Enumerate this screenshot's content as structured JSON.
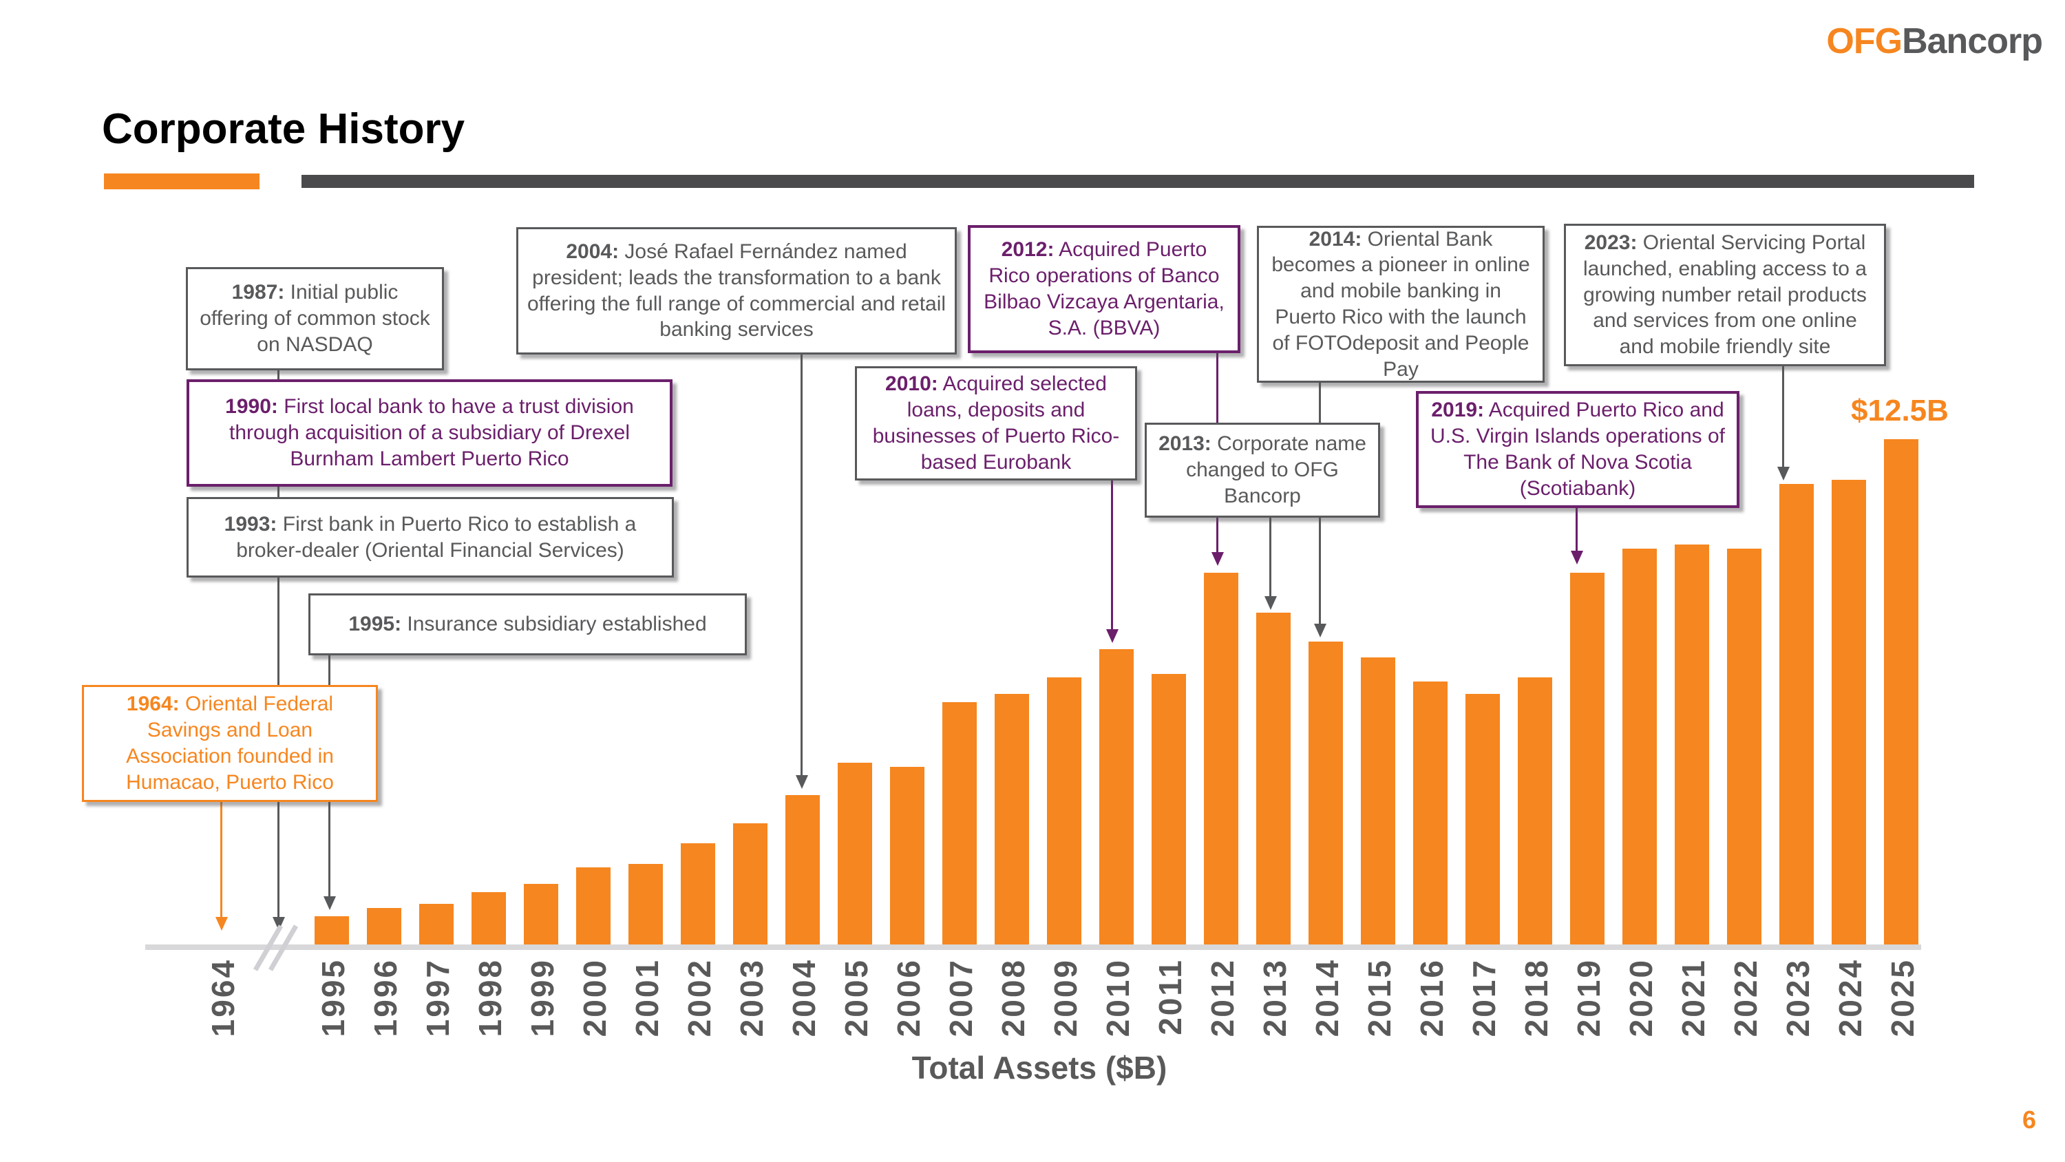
{
  "logo": {
    "ofg": "OFG",
    "bancorp": "Bancorp"
  },
  "title": "Corporate History",
  "page_number": "6",
  "colors": {
    "accent_orange": "#F6861F",
    "accent_purple": "#6B1F6B",
    "text_gray": "#58595B",
    "axis_gray": "#D8D8DA"
  },
  "events": {
    "e1964": {
      "year": "1964:",
      "text": "Oriental Federal Savings and Loan Association founded in Humacao, Puerto Rico"
    },
    "e1987": {
      "year": "1987:",
      "text": "Initial public offering of common stock on NASDAQ"
    },
    "e1990": {
      "year": "1990:",
      "text": "First local bank to have a trust division through acquisition of a subsidiary of Drexel Burnham Lambert Puerto Rico"
    },
    "e1993": {
      "year": "1993:",
      "text": "First bank in Puerto Rico to establish a broker-dealer (Oriental Financial Services)"
    },
    "e1995": {
      "year": "1995:",
      "text": "Insurance subsidiary established"
    },
    "e2004": {
      "year": "2004:",
      "text": "José Rafael Fernández named president; leads the transformation to a bank offering the full range of commercial and retail banking services"
    },
    "e2010": {
      "year": "2010:",
      "text": "Acquired selected loans, deposits and businesses of Puerto Rico-based Eurobank"
    },
    "e2012": {
      "year": "2012:",
      "text": "Acquired Puerto Rico operations of Banco Bilbao Vizcaya Argentaria, S.A. (BBVA)"
    },
    "e2013": {
      "year": "2013:",
      "text": "Corporate name changed to OFG Bancorp"
    },
    "e2014": {
      "year": "2014:",
      "text": "Oriental Bank becomes a pioneer in online and mobile banking in Puerto Rico with the launch of FOTOdeposit and People Pay"
    },
    "e2019": {
      "year": "2019:",
      "text": "Acquired Puerto Rico and U.S. Virgin Islands operations of The Bank of Nova Scotia (Scotiabank)"
    },
    "e2023": {
      "year": "2023:",
      "text": "Oriental Servicing Portal launched, enabling access to a growing number retail products and services from one online and mobile friendly site"
    }
  },
  "chart_data": {
    "type": "bar",
    "title": "",
    "xlabel": "Total Assets ($B)",
    "ylabel": "",
    "ylim": [
      0,
      12.5
    ],
    "annotation": "$12.5B",
    "bar_color": "#F6861F",
    "axis_break_between": [
      "1964",
      "1995"
    ],
    "extra_category": "1964",
    "extra_category_value": 0,
    "categories": [
      "1995",
      "1996",
      "1997",
      "1998",
      "1999",
      "2000",
      "2001",
      "2002",
      "2003",
      "2004",
      "2005",
      "2006",
      "2007",
      "2008",
      "2009",
      "2010",
      "2011",
      "2012",
      "2013",
      "2014",
      "2015",
      "2016",
      "2017",
      "2018",
      "2019",
      "2020",
      "2021",
      "2022",
      "2023",
      "2024",
      "2025"
    ],
    "values": [
      0.7,
      0.9,
      1.0,
      1.3,
      1.5,
      1.9,
      2.0,
      2.5,
      3.0,
      3.7,
      4.5,
      4.4,
      6.0,
      6.2,
      6.6,
      7.3,
      6.7,
      9.2,
      8.2,
      7.5,
      7.1,
      6.5,
      6.2,
      6.6,
      9.2,
      9.8,
      9.9,
      9.8,
      11.4,
      11.5,
      12.5
    ],
    "legend": [],
    "grid": false
  }
}
